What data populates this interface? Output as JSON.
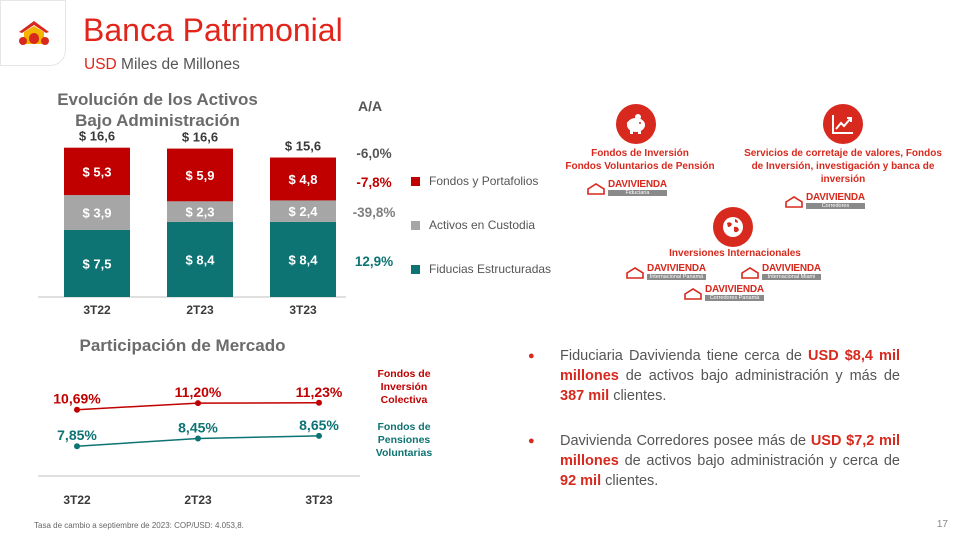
{
  "header": {
    "title": "Banca Patrimonial",
    "subtitle_currency": "USD",
    "subtitle_rest": "Miles de Millones"
  },
  "colors": {
    "red": "#c00000",
    "gray": "#a6a6a6",
    "teal": "#0e7373",
    "line_red": "#c00000",
    "line_teal": "#0e7373",
    "brand_red": "#d7291d"
  },
  "aum_section": {
    "title": "Evolución de los Activos Bajo Administración",
    "aa_header": "A/A"
  },
  "market_section": {
    "title": "Participación de Mercado"
  },
  "chart_data": [
    {
      "type": "bar",
      "stacked": true,
      "title": "Evolución de los Activos Bajo Administración",
      "categories": [
        "3T22",
        "2T23",
        "3T23"
      ],
      "totals": [
        "$ 16,6",
        "$ 16,6",
        "$ 15,6"
      ],
      "series": [
        {
          "name": "Fiducias Estructuradas",
          "values": [
            7.5,
            8.4,
            8.4
          ],
          "labels": [
            "$ 7,5",
            "$ 8,4",
            "$ 8,4"
          ],
          "color": "#0e7373"
        },
        {
          "name": "Activos en Custodia",
          "values": [
            3.9,
            2.3,
            2.4
          ],
          "labels": [
            "$ 3,9",
            "$ 2,3",
            "$ 2,4"
          ],
          "color": "#a6a6a6"
        },
        {
          "name": "Fondos  y Portafolios",
          "values": [
            5.3,
            5.9,
            4.8
          ],
          "labels": [
            "$ 5,3",
            "$ 5,9",
            "$ 4,8"
          ],
          "color": "#c00000"
        }
      ],
      "ylim": [
        0,
        17
      ],
      "yoy": [
        {
          "value": "-6,0%",
          "color": "#555555"
        },
        {
          "value": "-7,8%",
          "color": "#c00000"
        },
        {
          "value": "-39,8%",
          "color": "#7f7f7f"
        },
        {
          "value": "12,9%",
          "color": "#0e7373"
        }
      ],
      "legend_position": "right"
    },
    {
      "type": "line",
      "title": "Participación de Mercado",
      "categories": [
        "3T22",
        "2T23",
        "3T23"
      ],
      "series": [
        {
          "name": "Fondos de Inversión Colectiva",
          "values": [
            10.69,
            11.2,
            11.23
          ],
          "labels": [
            "10,69%",
            "11,20%",
            "11,23%"
          ],
          "color": "#c00000"
        },
        {
          "name": "Fondos de Pensiones Voluntarias",
          "values": [
            7.85,
            8.45,
            8.65
          ],
          "labels": [
            "7,85%",
            "8,45%",
            "8,65%"
          ],
          "color": "#0e7373"
        }
      ],
      "ylim": [
        6,
        13
      ]
    }
  ],
  "market_labels": {
    "fic_line1": "Fondos de",
    "fic_line2": "Inversión",
    "fic_line3": "Colectiva",
    "fpv_line1": "Fondos de",
    "fpv_line2": "Pensiones",
    "fpv_line3": "Voluntarias"
  },
  "entities": {
    "fondos": {
      "line1": "Fondos de Inversión",
      "line2": "Fondos Voluntarios de Pensión",
      "icon": "piggy-bank-icon",
      "brand_sub": "Fiduciaria"
    },
    "servicios": {
      "line1": "Servicios de corretaje de valores, Fondos",
      "line2": "de Inversión, investigación y banca de",
      "line3": "inversión",
      "icon": "trend-chart-icon",
      "brand_sub": "Corredores"
    },
    "inversiones": {
      "line1": "Inversiones Internacionales",
      "icon": "globe-icon",
      "brand_subs": [
        "Internacional Panamá",
        "Internacional Miami",
        "Corredores Panamá"
      ]
    },
    "brand_name": "DAVIVIENDA"
  },
  "bullets": [
    {
      "p1": "Fiduciaria Davivienda tiene cerca de ",
      "h1": "USD $8,4 mil millones",
      "p2": " de activos bajo administración y más de ",
      "h2": "387 mil",
      "p3": " clientes."
    },
    {
      "p1": "Davivienda Corredores posee más de ",
      "h1": "USD $7,2 mil millones",
      "p2": " de activos bajo administración y cerca de ",
      "h2": "92 mil",
      "p3": " clientes."
    }
  ],
  "footnote": "Tasa de cambio a septiembre de 2023: COP/USD: 4.053,8.",
  "page_number": "17"
}
